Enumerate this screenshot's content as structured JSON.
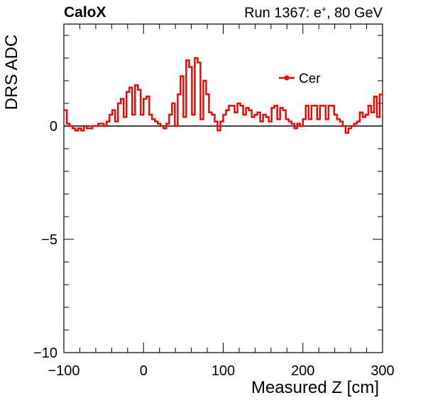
{
  "header": {
    "experiment": "CaloX",
    "run_info": "Run 1367: e",
    "run_superscript": "+",
    "run_energy": ", 80 GeV"
  },
  "chart_data": {
    "type": "line",
    "style": "step histogram",
    "xlabel": "Measured Z [cm]",
    "ylabel": "DRS ADC",
    "xlim": [
      -100,
      300
    ],
    "ylim": [
      -10,
      4.5
    ],
    "x_ticks": [
      -100,
      0,
      100,
      200,
      300
    ],
    "x_tick_labels": [
      "−100",
      "0",
      "100",
      "200",
      "300"
    ],
    "y_ticks": [
      -10,
      -5,
      0
    ],
    "y_tick_labels": [
      "−10",
      "−5",
      "0"
    ],
    "grid": false,
    "legend": {
      "position": "top-right",
      "entries": [
        "Cer"
      ]
    },
    "series_color": "#ff0000",
    "reference_line_y": 0,
    "series": [
      {
        "name": "Cer",
        "bin_edges": [
          -100,
          300
        ],
        "values": [
          0.7,
          0.1,
          0.0,
          -0.1,
          -0.2,
          -0.1,
          -0.2,
          0.0,
          -0.1,
          -0.1,
          0.0,
          0.0,
          0.1,
          0.1,
          0.0,
          0.2,
          0.5,
          0.7,
          0.2,
          1.0,
          1.2,
          0.4,
          1.5,
          1.7,
          0.5,
          1.8,
          1.6,
          0.5,
          1.2,
          1.3,
          0.5,
          0.3,
          0.2,
          0.1,
          0.0,
          -0.1,
          0.1,
          0.5,
          1.0,
          0.0,
          1.4,
          2.2,
          0.4,
          2.9,
          2.6,
          0.5,
          3.0,
          2.8,
          0.3,
          2.0,
          1.4,
          0.6,
          0.5,
          0.2,
          -0.2,
          0.2,
          0.5,
          0.7,
          0.9,
          0.9,
          0.6,
          1.0,
          0.9,
          0.5,
          0.8,
          0.7,
          0.4,
          0.5,
          0.6,
          0.2,
          0.5,
          0.4,
          0.2,
          0.8,
          0.9,
          0.3,
          0.8,
          0.7,
          0.3,
          0.2,
          0.1,
          -0.1,
          0.1,
          0.0,
          0.3,
          0.9,
          0.3,
          0.9,
          0.9,
          0.3,
          0.9,
          0.9,
          0.3,
          0.9,
          0.9,
          0.5,
          0.3,
          0.2,
          0.0,
          -0.3,
          -0.1,
          0.0,
          0.1,
          0.2,
          0.6,
          0.4,
          0.5,
          0.9,
          0.6,
          1.3,
          0.4,
          1.4
        ]
      }
    ]
  }
}
